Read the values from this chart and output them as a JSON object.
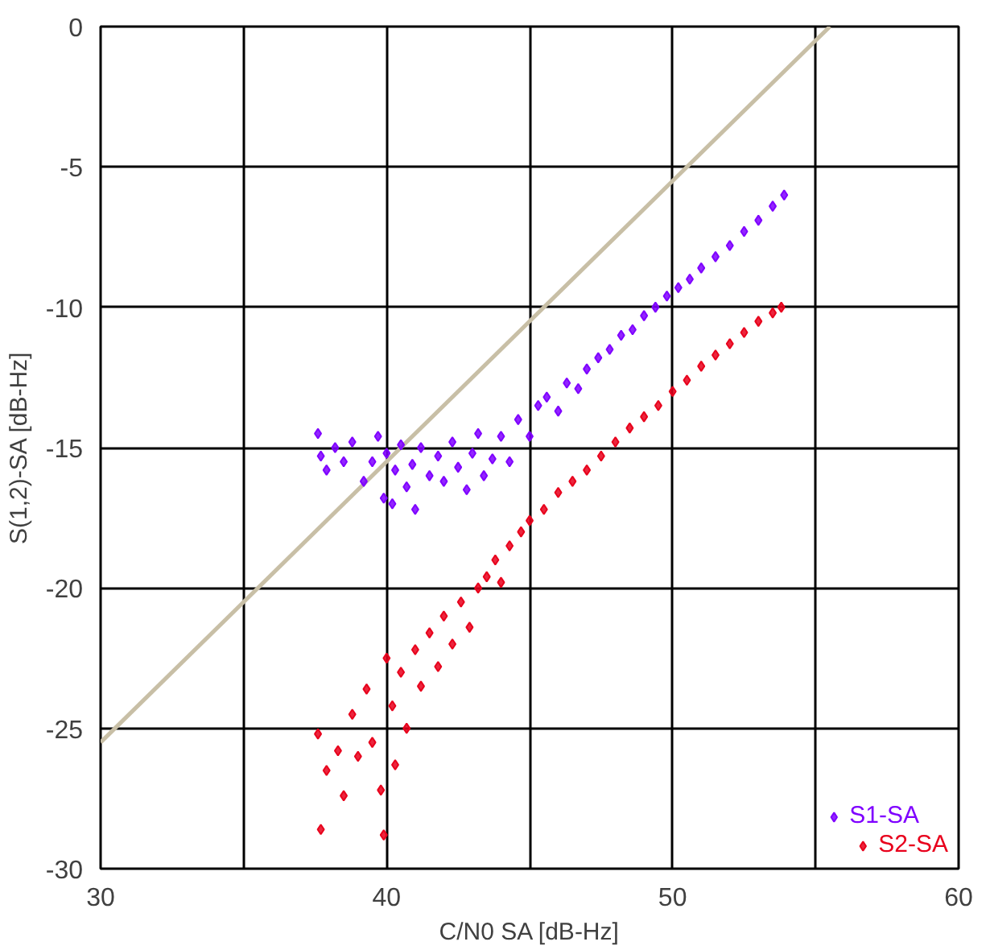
{
  "chart_data": {
    "type": "scatter",
    "xlabel": "C/N0 SA [dB-Hz]",
    "ylabel": "S(1,2)-SA [dB-Hz]",
    "xlim": [
      30,
      60
    ],
    "ylim": [
      -30,
      0
    ],
    "xticks": [
      30,
      {
        "value": 35,
        "label": null
      },
      40,
      {
        "value": 45,
        "label": null
      },
      50,
      {
        "value": 55,
        "label": null
      },
      60
    ],
    "yticks": [
      -30,
      -25,
      -20,
      -15,
      -10,
      -5,
      0
    ],
    "grid": true,
    "legend": "bottom right",
    "marker": "diamond",
    "series": [
      {
        "type": "line",
        "color": "#c8bfa6",
        "marker": "none",
        "x": [
          30,
          55.5
        ],
        "values": [
          -25.5,
          0
        ]
      },
      {
        "name": "S1-SA",
        "color": "#7f00ff",
        "x": [
          37.6,
          37.7,
          37.9,
          38.2,
          38.5,
          38.8,
          39.2,
          39.5,
          39.7,
          39.9,
          40.0,
          40.2,
          40.3,
          40.5,
          40.7,
          40.9,
          41.0,
          41.2,
          41.5,
          41.8,
          42.0,
          42.3,
          42.5,
          42.8,
          43.0,
          43.2,
          43.4,
          43.7,
          44.0,
          44.3,
          44.6,
          45.0,
          45.3,
          45.6,
          46.0,
          46.3,
          46.7,
          47.0,
          47.4,
          47.8,
          48.2,
          48.6,
          49.0,
          49.4,
          49.8,
          50.2,
          50.6,
          51.0,
          51.5,
          52.0,
          52.5,
          53.0,
          53.5,
          53.9
        ],
        "values": [
          -14.5,
          -15.3,
          -15.8,
          -15.0,
          -15.5,
          -14.8,
          -16.2,
          -15.5,
          -14.6,
          -16.8,
          -15.2,
          -17.0,
          -15.8,
          -14.9,
          -16.4,
          -15.6,
          -17.2,
          -15.0,
          -16.0,
          -15.3,
          -16.2,
          -14.8,
          -15.7,
          -16.5,
          -15.2,
          -14.5,
          -16.0,
          -15.4,
          -14.6,
          -15.5,
          -14.0,
          -14.6,
          -13.5,
          -13.2,
          -13.7,
          -12.7,
          -12.9,
          -12.2,
          -11.8,
          -11.5,
          -11.0,
          -10.8,
          -10.3,
          -10.0,
          -9.6,
          -9.3,
          -9.0,
          -8.6,
          -8.2,
          -7.8,
          -7.3,
          -6.9,
          -6.4,
          -6.0
        ]
      },
      {
        "name": "S2-SA",
        "color": "#e8001c",
        "x": [
          37.7,
          37.6,
          37.9,
          38.3,
          38.5,
          38.8,
          39.0,
          39.3,
          39.5,
          39.8,
          39.9,
          40.0,
          40.2,
          40.3,
          40.5,
          40.7,
          41.0,
          41.2,
          41.5,
          41.8,
          42.0,
          42.3,
          42.6,
          42.9,
          43.2,
          43.5,
          43.8,
          44.0,
          44.3,
          44.7,
          45.0,
          45.5,
          46.0,
          46.5,
          47.0,
          47.5,
          48.0,
          48.5,
          49.0,
          49.5,
          50.0,
          50.5,
          51.0,
          51.5,
          52.0,
          52.5,
          53.0,
          53.5,
          53.8
        ],
        "values": [
          -28.6,
          -25.2,
          -26.5,
          -25.8,
          -27.4,
          -24.5,
          -26.0,
          -23.6,
          -25.5,
          -27.2,
          -28.8,
          -22.5,
          -24.2,
          -26.3,
          -23.0,
          -25.0,
          -22.2,
          -23.5,
          -21.6,
          -22.8,
          -21.0,
          -22.0,
          -20.5,
          -21.4,
          -20.0,
          -19.6,
          -19.0,
          -19.8,
          -18.5,
          -18.0,
          -17.6,
          -17.2,
          -16.6,
          -16.2,
          -15.8,
          -15.3,
          -14.8,
          -14.3,
          -13.9,
          -13.5,
          -13.0,
          -12.6,
          -12.1,
          -11.7,
          -11.3,
          -10.9,
          -10.5,
          -10.2,
          -10.0
        ]
      }
    ]
  }
}
